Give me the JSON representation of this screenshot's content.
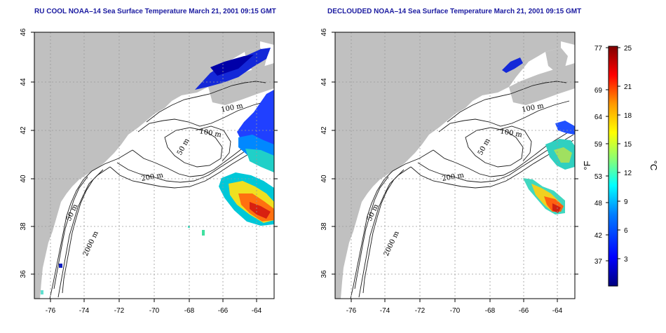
{
  "panels": [
    {
      "title": "RU COOL NOAA–14 Sea Surface Temperature March 21, 2001 09:15 GMT"
    },
    {
      "title": "DECLOUDED NOAA–14 Sea Surface Temperature March 21, 2001 09:15 GMT"
    }
  ],
  "map_axes": {
    "x_ticks": [
      "-76",
      "-74",
      "-72",
      "-70",
      "-68",
      "-66",
      "-64"
    ],
    "y_ticks": [
      "36",
      "38",
      "40",
      "42",
      "44",
      "46"
    ]
  },
  "contour_labels": [
    "100 m",
    "100 m",
    "50 m",
    "200 m",
    "50 m",
    "2000 m"
  ],
  "colorbar": {
    "fahrenheit_ticks": [
      "77",
      "69",
      "64",
      "59",
      "53",
      "48",
      "42",
      "37"
    ],
    "celsius_ticks": [
      "25",
      "21",
      "18",
      "15",
      "12",
      "9",
      "6",
      "3"
    ],
    "unit_f": "°F",
    "unit_c": "°C",
    "colors": [
      "#00007f",
      "#0000ff",
      "#007fff",
      "#00ffff",
      "#7fff7f",
      "#ffff00",
      "#ff7f00",
      "#ff0000",
      "#7f0000"
    ]
  },
  "colors": {
    "land": "#c0c0c0",
    "ocean": "#ffffff",
    "title": "#1a1aa0",
    "grid": "#9a9a9a"
  }
}
